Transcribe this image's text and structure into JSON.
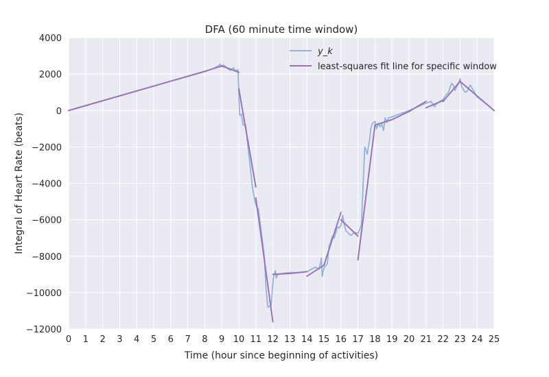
{
  "chart_data": {
    "type": "line",
    "title": "DFA (60 minute time window)",
    "xlabel": "Time (hour since beginning of activities)",
    "ylabel": "Integral of Heart Rate (beats)",
    "xlim": [
      0,
      25
    ],
    "ylim": [
      -12000,
      4000
    ],
    "x_ticks": [
      0,
      1,
      2,
      3,
      4,
      5,
      6,
      7,
      8,
      9,
      10,
      11,
      12,
      13,
      14,
      15,
      16,
      17,
      18,
      19,
      20,
      21,
      22,
      23,
      24,
      25
    ],
    "y_ticks": [
      -12000,
      -10000,
      -8000,
      -6000,
      -4000,
      -2000,
      0,
      2000,
      4000
    ],
    "y_tick_labels": [
      "−12000",
      "−10000",
      "−8000",
      "−6000",
      "−4000",
      "−2000",
      "0",
      "2000",
      "4000"
    ],
    "grid": true,
    "legend_position": "top-right",
    "legend": [
      "y_k",
      "least-squares fit line for specific window"
    ],
    "series": [
      {
        "name": "y_k",
        "color": "#92b4d8",
        "x": [
          0,
          8.0,
          8.5,
          8.8,
          8.9,
          9.0,
          9.1,
          9.3,
          9.5,
          9.7,
          9.8,
          9.95,
          10.0,
          10.05,
          10.15,
          10.25,
          10.4,
          10.6,
          10.8,
          10.95,
          11.05,
          11.15,
          11.3,
          11.5,
          11.6,
          11.7,
          11.8,
          11.9,
          12.0,
          12.05,
          12.15,
          12.2,
          12.3,
          12.5,
          13.0,
          13.5,
          14.0,
          14.5,
          14.7,
          14.8,
          14.85,
          14.9,
          15.0,
          15.2,
          15.3,
          15.5,
          15.6,
          15.8,
          15.9,
          16.0,
          16.05,
          16.1,
          16.2,
          16.3,
          16.4,
          16.5,
          16.6,
          16.8,
          17.0,
          17.2,
          17.4,
          17.45,
          17.55,
          17.6,
          17.7,
          17.75,
          17.85,
          18.0,
          18.1,
          18.2,
          18.3,
          18.4,
          18.5,
          18.6,
          18.7,
          18.8,
          19.0,
          20.0,
          21.0,
          21.3,
          21.5,
          21.6,
          21.8,
          22.0,
          22.2,
          22.3,
          22.5,
          22.6,
          22.7,
          22.8,
          22.9,
          23.0,
          23.1,
          23.3,
          23.4,
          23.6,
          24.0,
          24.5,
          25.0
        ],
        "y": [
          0,
          2150,
          2300,
          2450,
          2550,
          2400,
          2500,
          2350,
          2200,
          2350,
          2150,
          2250,
          1000,
          -250,
          -200,
          -800,
          -800,
          -2500,
          -4200,
          -5000,
          -5300,
          -5400,
          -6500,
          -8000,
          -9800,
          -10800,
          -10750,
          -10700,
          -9500,
          -9100,
          -8800,
          -9200,
          -9000,
          -8950,
          -8900,
          -8900,
          -8850,
          -8600,
          -8700,
          -8400,
          -8100,
          -9100,
          -8650,
          -8400,
          -7500,
          -6900,
          -7000,
          -6400,
          -6450,
          -6300,
          -6100,
          -5750,
          -6300,
          -6600,
          -6700,
          -6800,
          -6850,
          -6700,
          -6750,
          -6300,
          -2000,
          -2100,
          -2400,
          -2050,
          -1500,
          -1000,
          -700,
          -600,
          -1000,
          -700,
          -900,
          -750,
          -1100,
          -400,
          -650,
          -400,
          -350,
          0,
          400,
          500,
          200,
          350,
          500,
          600,
          900,
          950,
          1500,
          1400,
          1100,
          1300,
          1450,
          1750,
          1300,
          1000,
          1050,
          1400,
          750,
          400,
          0
        ]
      },
      {
        "name": "least-squares fit line for specific window",
        "color": "#9b72b8",
        "segments": [
          [
            [
              0,
              0
            ],
            [
              8,
              2150
            ]
          ],
          [
            [
              8,
              2150
            ],
            [
              9,
              2450
            ]
          ],
          [
            [
              9,
              2450
            ],
            [
              10,
              2100
            ]
          ],
          [
            [
              10,
              1200
            ],
            [
              11,
              -4200
            ]
          ],
          [
            [
              11,
              -4800
            ],
            [
              12,
              -11600
            ]
          ],
          [
            [
              12,
              -9000
            ],
            [
              13,
              -8950
            ]
          ],
          [
            [
              13,
              -8950
            ],
            [
              14,
              -8850
            ]
          ],
          [
            [
              14,
              -9100
            ],
            [
              15,
              -8500
            ]
          ],
          [
            [
              15,
              -8500
            ],
            [
              16,
              -5600
            ]
          ],
          [
            [
              16,
              -6000
            ],
            [
              17,
              -6900
            ]
          ],
          [
            [
              17,
              -8200
            ],
            [
              18,
              -800
            ]
          ],
          [
            [
              18,
              -800
            ],
            [
              19,
              -500
            ]
          ],
          [
            [
              19,
              -500
            ],
            [
              20,
              -50
            ]
          ],
          [
            [
              20,
              -50
            ],
            [
              21,
              500
            ]
          ],
          [
            [
              21,
              150
            ],
            [
              22,
              550
            ]
          ],
          [
            [
              22,
              500
            ],
            [
              23,
              1600
            ]
          ],
          [
            [
              23,
              1600
            ],
            [
              24,
              800
            ]
          ],
          [
            [
              24,
              800
            ],
            [
              25,
              0
            ]
          ]
        ]
      }
    ]
  }
}
